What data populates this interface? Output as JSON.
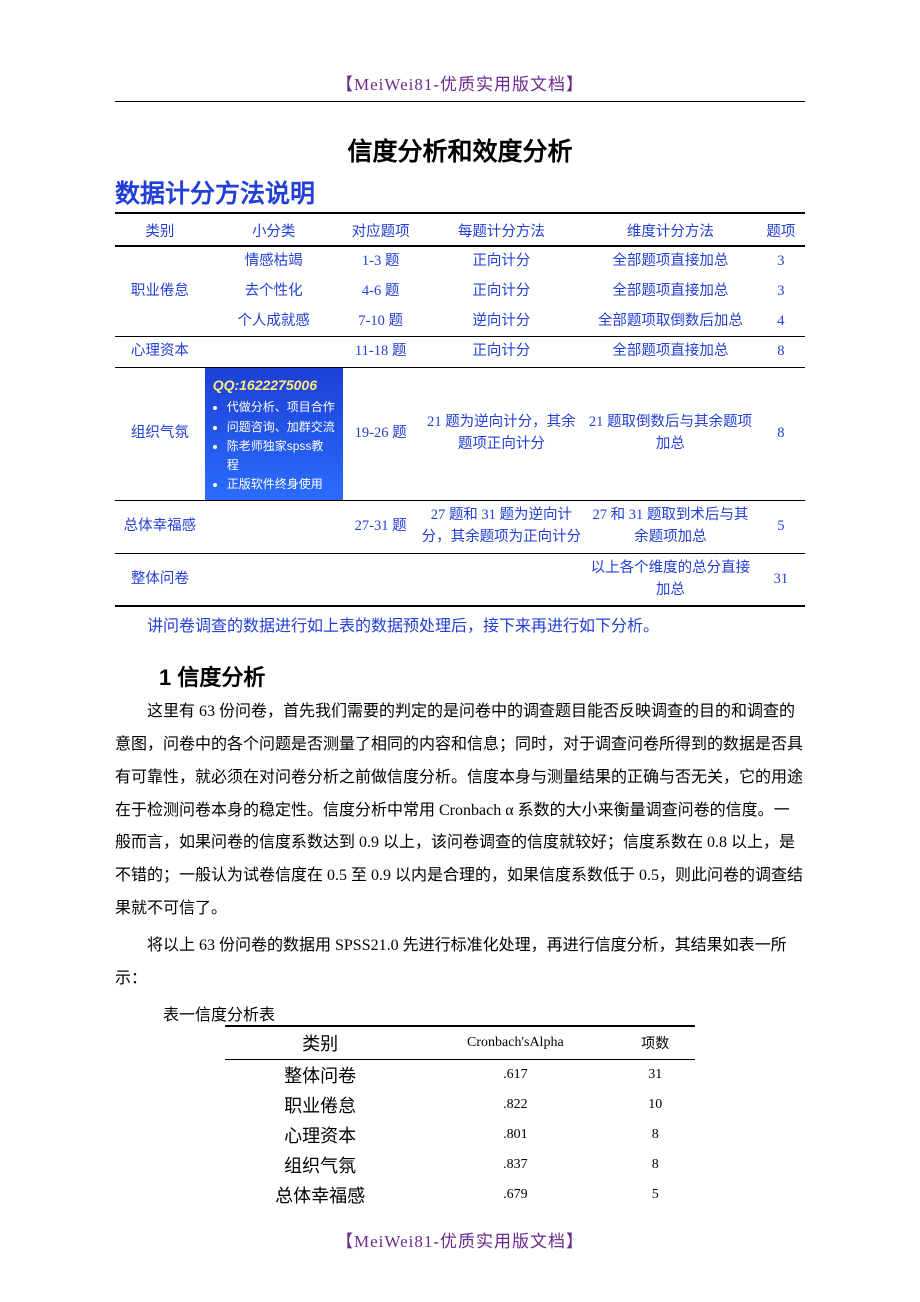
{
  "header_tag": "【MeiWei81-优质实用版文档】",
  "footer_tag": "【MeiWei81-优质实用版文档】",
  "title": "信度分析和效度分析",
  "section_heading": "数据计分方法说明",
  "scoring_table": {
    "columns": [
      "类别",
      "小分类",
      "对应题项",
      "每题计分方法",
      "维度计分方法",
      "题项"
    ],
    "rows": [
      {
        "c": "",
        "sub": "情感枯竭",
        "items": "1-3 题",
        "per": "正向计分",
        "dim": "全部题项直接加总",
        "n": "3"
      },
      {
        "c": "职业倦怠",
        "sub": "去个性化",
        "items": "4-6 题",
        "per": "正向计分",
        "dim": "全部题项直接加总",
        "n": "3"
      },
      {
        "c": "",
        "sub": "个人成就感",
        "items": "7-10 题",
        "per": "逆向计分",
        "dim": "全部题项取倒数后加总",
        "n": "4",
        "sep": true
      },
      {
        "c": "心理资本",
        "sub": "",
        "items": "11-18 题",
        "per": "正向计分",
        "dim": "全部题项直接加总",
        "n": "8",
        "sep": true
      },
      {
        "c": "组织气氛",
        "sub": "__promo__",
        "items": "19-26 题",
        "per": "21 题为逆向计分，其余题项正向计分",
        "dim": "21 题取倒数后与其余题项加总",
        "n": "8",
        "sep": true
      },
      {
        "c": "总体幸福感",
        "sub": "",
        "items": "27-31 题",
        "per": "27 题和 31 题为逆向计分，其余题项为正向计分",
        "dim": "27 和 31 题取到术后与其余题项加总",
        "n": "5",
        "sep": true
      },
      {
        "c": "整体问卷",
        "sub": "",
        "items": "",
        "per": "",
        "dim": "以上各个维度的总分直接加总",
        "n": "31"
      }
    ]
  },
  "promo": {
    "qq": "QQ:1622275006",
    "lines": [
      "代做分析、项目合作",
      "问题咨询、加群交流",
      "陈老师独家spss教程",
      "正版软件终身使用"
    ]
  },
  "post_table_line": "讲问卷调查的数据进行如上表的数据预处理后，接下来再进行如下分析。",
  "sub_heading": "1 信度分析",
  "paragraphs": [
    "这里有 63 份问卷，首先我们需要的判定的是问卷中的调查题目能否反映调查的目的和调查的意图，问卷中的各个问题是否测量了相同的内容和信息；同时，对于调查问卷所得到的数据是否具有可靠性，就必须在对问卷分析之前做信度分析。信度本身与测量结果的正确与否无关，它的用途在于检测问卷本身的稳定性。信度分析中常用 Cronbach α 系数的大小来衡量调查问卷的信度。一般而言，如果问卷的信度系数达到 0.9 以上，该问卷调查的信度就较好；信度系数在 0.8 以上，是不错的；一般认为试卷信度在 0.5 至 0.9 以内是合理的，如果信度系数低于 0.5，则此问卷的调查结果就不可信了。",
    "将以上 63 份问卷的数据用 SPSS21.0 先进行标准化处理，再进行信度分析，其结果如表一所示："
  ],
  "reli_caption": "表一信度分析表",
  "reli_table": {
    "columns": [
      "类别",
      "Cronbach'sAlpha",
      "项数"
    ],
    "rows": [
      {
        "c": "整体问卷",
        "a": ".617",
        "n": "31"
      },
      {
        "c": "职业倦怠",
        "a": ".822",
        "n": "10"
      },
      {
        "c": "心理资本",
        "a": ".801",
        "n": "8"
      },
      {
        "c": "组织气氛",
        "a": ".837",
        "n": "8"
      },
      {
        "c": "总体幸福感",
        "a": ".679",
        "n": "5"
      }
    ]
  },
  "colors": {
    "link_blue": "#233fd6",
    "header_purple": "#6d2a8e",
    "promo_bg_top": "#1d3fd4",
    "promo_bg_bottom": "#2a6dff",
    "promo_qq": "#ffe97a"
  }
}
